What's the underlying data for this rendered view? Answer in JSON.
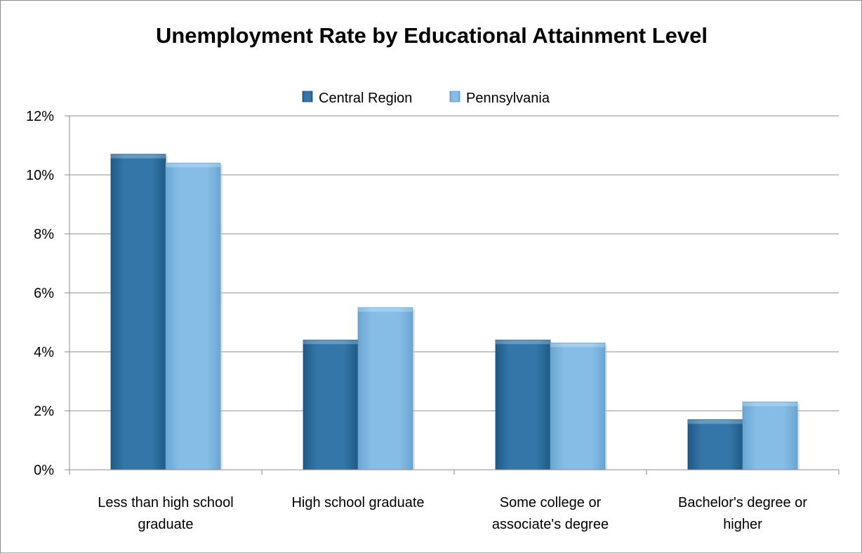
{
  "chart_data": {
    "type": "bar",
    "title": "Unemployment Rate by Educational Attainment Level",
    "categories": [
      [
        "Less than high school",
        "graduate"
      ],
      [
        "High school graduate"
      ],
      [
        "Some college or",
        "associate's degree"
      ],
      [
        "Bachelor's degree or",
        "higher"
      ]
    ],
    "series": [
      {
        "name": "Central Region",
        "color": "#2e6e9e",
        "values": [
          10.7,
          4.4,
          4.4,
          1.7
        ]
      },
      {
        "name": "Pennsylvania",
        "color": "#7fb6df",
        "values": [
          10.4,
          5.5,
          4.3,
          2.3
        ]
      }
    ],
    "ylim": [
      0,
      12
    ],
    "yticks": [
      {
        "value": 0,
        "label": "0%"
      },
      {
        "value": 2,
        "label": "2%"
      },
      {
        "value": 4,
        "label": "4%"
      },
      {
        "value": 6,
        "label": "6%"
      },
      {
        "value": 8,
        "label": "8%"
      },
      {
        "value": 10,
        "label": "10%"
      },
      {
        "value": 12,
        "label": "12%"
      }
    ],
    "grid": true,
    "legend_position": "top"
  }
}
